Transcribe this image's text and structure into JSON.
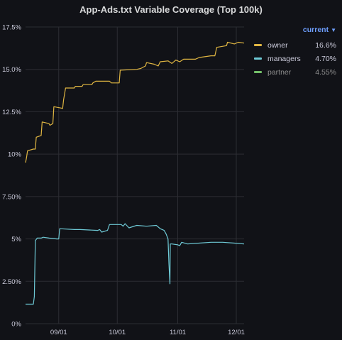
{
  "panel": {
    "title": "App-Ads.txt Variable Coverage (Top 100k)"
  },
  "legend": {
    "header": "current",
    "items": [
      {
        "name": "owner",
        "value": "16.6%",
        "color": "#e0b642",
        "dimmed": false
      },
      {
        "name": "managers",
        "value": "4.70%",
        "color": "#6ec9d5",
        "dimmed": false
      },
      {
        "name": "partner",
        "value": "4.55%",
        "color": "#73bf69",
        "dimmed": true
      }
    ]
  },
  "chart_data": {
    "type": "line",
    "y_ticks": [
      "0%",
      "2.50%",
      "5%",
      "7.50%",
      "10%",
      "12.5%",
      "15.0%",
      "17.5%"
    ],
    "y_tick_values": [
      0,
      2.5,
      5,
      7.5,
      10,
      12.5,
      15,
      17.5
    ],
    "x_ticks": [
      "09/01",
      "10/01",
      "11/01",
      "12/01"
    ],
    "x_tick_days": [
      0,
      30,
      61,
      91
    ],
    "xlim_days": [
      -17,
      95
    ],
    "ylim": [
      0,
      17.5
    ],
    "grid": true,
    "series": [
      {
        "name": "owner",
        "color": "#e0b642",
        "points": [
          [
            -17,
            9.5
          ],
          [
            -16.5,
            9.8
          ],
          [
            -16,
            10.2
          ],
          [
            -13,
            10.3
          ],
          [
            -12,
            10.3
          ],
          [
            -11.5,
            11.0
          ],
          [
            -9,
            11.1
          ],
          [
            -8.5,
            11.9
          ],
          [
            -5,
            11.8
          ],
          [
            -4.5,
            11.7
          ],
          [
            -3,
            11.8
          ],
          [
            -2.5,
            12.8
          ],
          [
            2,
            12.7
          ],
          [
            2.5,
            13.2
          ],
          [
            3.5,
            13.9
          ],
          [
            8,
            13.9
          ],
          [
            8.5,
            14.0
          ],
          [
            12,
            14.0
          ],
          [
            12.5,
            14.1
          ],
          [
            17,
            14.1
          ],
          [
            17.5,
            14.2
          ],
          [
            19,
            14.3
          ],
          [
            24,
            14.3
          ],
          [
            26,
            14.3
          ],
          [
            27,
            14.2
          ],
          [
            30,
            14.2
          ],
          [
            31,
            14.2
          ],
          [
            31.5,
            14.95
          ],
          [
            40,
            15.0
          ],
          [
            42,
            15.05
          ],
          [
            44.5,
            15.2
          ],
          [
            45,
            15.4
          ],
          [
            49,
            15.3
          ],
          [
            51,
            15.2
          ],
          [
            52,
            15.45
          ],
          [
            56,
            15.5
          ],
          [
            58,
            15.35
          ],
          [
            60,
            15.55
          ],
          [
            62,
            15.45
          ],
          [
            64,
            15.6
          ],
          [
            70,
            15.6
          ],
          [
            72,
            15.7
          ],
          [
            78,
            15.8
          ],
          [
            80,
            15.8
          ],
          [
            81,
            16.3
          ],
          [
            86,
            16.4
          ],
          [
            86.5,
            16.6
          ],
          [
            90,
            16.5
          ],
          [
            92,
            16.6
          ],
          [
            95,
            16.55
          ]
        ]
      },
      {
        "name": "managers",
        "color": "#6ec9d5",
        "points": [
          [
            -17,
            1.15
          ],
          [
            -13,
            1.15
          ],
          [
            -12.5,
            1.6
          ],
          [
            -12,
            4.9
          ],
          [
            -11,
            5.05
          ],
          [
            -9,
            5.05
          ],
          [
            -8,
            5.1
          ],
          [
            -5,
            5.05
          ],
          [
            -1,
            5.0
          ],
          [
            0,
            5.0
          ],
          [
            0.5,
            5.6
          ],
          [
            8,
            5.55
          ],
          [
            11,
            5.55
          ],
          [
            20,
            5.5
          ],
          [
            21,
            5.55
          ],
          [
            22,
            5.4
          ],
          [
            25,
            5.5
          ],
          [
            26,
            5.85
          ],
          [
            32,
            5.85
          ],
          [
            33,
            5.75
          ],
          [
            34,
            5.9
          ],
          [
            36,
            5.65
          ],
          [
            40,
            5.8
          ],
          [
            45,
            5.75
          ],
          [
            50,
            5.8
          ],
          [
            52,
            5.6
          ],
          [
            54,
            5.5
          ],
          [
            55,
            5.3
          ],
          [
            56,
            5.0
          ],
          [
            56.5,
            3.5
          ],
          [
            57,
            2.35
          ],
          [
            57.2,
            4.7
          ],
          [
            58,
            4.7
          ],
          [
            61,
            4.65
          ],
          [
            62,
            4.6
          ],
          [
            63,
            4.8
          ],
          [
            66,
            4.7
          ],
          [
            72,
            4.75
          ],
          [
            78,
            4.8
          ],
          [
            84,
            4.8
          ],
          [
            90,
            4.75
          ],
          [
            95,
            4.7
          ]
        ]
      }
    ]
  }
}
